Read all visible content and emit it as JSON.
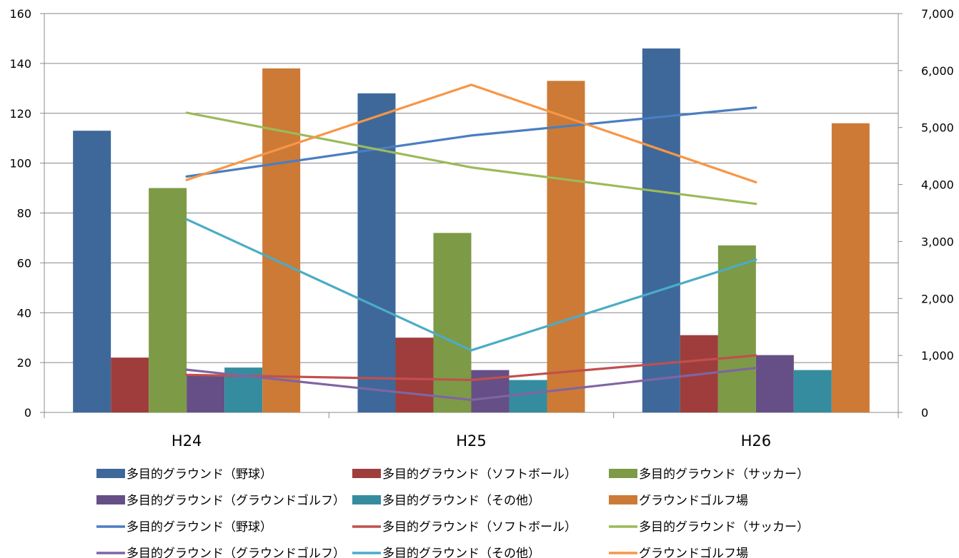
{
  "chart_data": {
    "type": "bar",
    "categories": [
      "H24",
      "H25",
      "H26"
    ],
    "y_left": {
      "lim": [
        0,
        160
      ],
      "ticks": [
        "0",
        "20",
        "40",
        "60",
        "80",
        "100",
        "120",
        "140",
        "160"
      ]
    },
    "y_right": {
      "lim": [
        0,
        7000
      ],
      "ticks": [
        "0",
        "1,000",
        "2,000",
        "3,000",
        "4,000",
        "5,000",
        "6,000",
        "7,000"
      ]
    },
    "grid": true,
    "legend_position": "bottom",
    "bar_series": [
      {
        "name": "多目的グラウンド（野球）",
        "color": "#3E689A",
        "values": [
          113,
          128,
          146
        ]
      },
      {
        "name": "多目的グラウンド（ソフトボール）",
        "color": "#9E3D3B",
        "values": [
          22,
          30,
          31
        ]
      },
      {
        "name": "多目的グラウンド（サッカー）",
        "color": "#7D9A47",
        "values": [
          90,
          72,
          67
        ]
      },
      {
        "name": "多目的グラウンド（グラウンドゴルフ）",
        "color": "#664F86",
        "values": [
          15,
          17,
          23
        ]
      },
      {
        "name": "多目的グラウンド（その他）",
        "color": "#368C9F",
        "values": [
          18,
          13,
          17
        ]
      },
      {
        "name": "グラウンドゴルフ場",
        "color": "#CC7A36",
        "values": [
          138,
          133,
          116
        ]
      }
    ],
    "line_series": [
      {
        "name": "多目的グラウンド（野球）",
        "color": "#4A7EC0",
        "values": [
          4140,
          4860,
          5350
        ]
      },
      {
        "name": "多目的グラウンド（ソフトボール）",
        "color": "#C0504D",
        "values": [
          660,
          570,
          1000
        ]
      },
      {
        "name": "多目的グラウンド（サッカー）",
        "color": "#9BBB59",
        "values": [
          5260,
          4300,
          3660
        ]
      },
      {
        "name": "多目的グラウンド（グラウンドゴルフ）",
        "color": "#8064A2",
        "values": [
          750,
          220,
          780
        ]
      },
      {
        "name": "多目的グラウンド（その他）",
        "color": "#4BACC6",
        "values": [
          3390,
          1090,
          2680
        ]
      },
      {
        "name": "グラウンドゴルフ場",
        "color": "#F79646",
        "values": [
          4080,
          5750,
          4040
        ]
      }
    ]
  }
}
